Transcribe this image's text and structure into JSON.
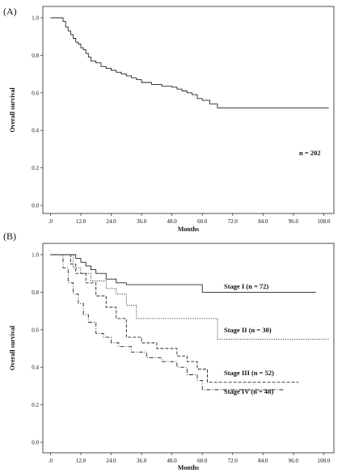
{
  "chart_data": [
    {
      "type": "line",
      "panel_label": "(A)",
      "xlabel": "Months",
      "ylabel": "Overall survival",
      "xlim": [
        -3,
        112
      ],
      "ylim": [
        0,
        1.0
      ],
      "xticks": [
        ".0",
        "12.0",
        "24.0",
        "36.0",
        "48.0",
        "60.0",
        "72.0",
        "84.0",
        "96.0",
        "108.0"
      ],
      "yticks": [
        "0.0",
        "0.2",
        "0.4",
        "0.6",
        "0.8",
        "1.0"
      ],
      "annotation": "n = 202",
      "series": [
        {
          "style": "solid",
          "x": [
            0,
            4,
            5,
            6,
            7,
            8,
            9,
            10,
            11,
            12,
            13,
            14,
            15,
            16,
            18,
            20,
            22,
            24,
            26,
            28,
            30,
            32,
            34,
            36,
            40,
            44,
            48,
            50,
            52,
            54,
            56,
            58,
            60,
            63,
            66,
            110
          ],
          "y": [
            1.0,
            1.0,
            0.98,
            0.95,
            0.93,
            0.91,
            0.89,
            0.87,
            0.86,
            0.84,
            0.83,
            0.81,
            0.79,
            0.77,
            0.76,
            0.74,
            0.73,
            0.72,
            0.71,
            0.7,
            0.69,
            0.68,
            0.67,
            0.655,
            0.645,
            0.635,
            0.63,
            0.62,
            0.61,
            0.6,
            0.59,
            0.57,
            0.56,
            0.54,
            0.52,
            0.52
          ]
        }
      ]
    },
    {
      "type": "line",
      "panel_label": "(B)",
      "xlabel": "Months",
      "ylabel": "Overall survival",
      "xlim": [
        -3,
        112
      ],
      "ylim": [
        0,
        1.0
      ],
      "xticks": [
        ".0",
        "12.0",
        "24.0",
        "36.0",
        "48.0",
        "60.0",
        "72.0",
        "84.0",
        "96.0",
        "108.0"
      ],
      "yticks": [
        "0.0",
        "0.2",
        "0.4",
        "0.6",
        "0.8",
        "1.0"
      ],
      "series": [
        {
          "name": "Stage I (n = 72)",
          "style": "solid",
          "x": [
            0,
            8,
            10,
            12,
            14,
            16,
            18,
            22,
            26,
            30,
            60,
            105
          ],
          "y": [
            1.0,
            1.0,
            0.98,
            0.96,
            0.94,
            0.92,
            0.9,
            0.87,
            0.85,
            0.84,
            0.8,
            0.8
          ]
        },
        {
          "name": "Stage II (n = 30)",
          "style": "dotted",
          "x": [
            0,
            6,
            9,
            12,
            16,
            22,
            26,
            30,
            34,
            48,
            66,
            110
          ],
          "y": [
            1.0,
            1.0,
            0.93,
            0.9,
            0.86,
            0.82,
            0.79,
            0.73,
            0.66,
            0.66,
            0.55,
            0.55
          ]
        },
        {
          "name": "Stage III (n = 52)",
          "style": "dashed",
          "x": [
            0,
            5,
            8,
            10,
            14,
            18,
            22,
            26,
            30,
            36,
            42,
            50,
            54,
            58,
            62,
            98
          ],
          "y": [
            1.0,
            1.0,
            0.95,
            0.9,
            0.85,
            0.78,
            0.72,
            0.66,
            0.56,
            0.53,
            0.5,
            0.46,
            0.43,
            0.39,
            0.32,
            0.32
          ]
        },
        {
          "name": "Stage IV (n = 48)",
          "style": "dashdot",
          "x": [
            0,
            3,
            5,
            7,
            9,
            11,
            13,
            15,
            18,
            21,
            24,
            27,
            32,
            38,
            44,
            50,
            54,
            58,
            60,
            92
          ],
          "y": [
            1.0,
            1.0,
            0.93,
            0.85,
            0.79,
            0.74,
            0.68,
            0.64,
            0.58,
            0.56,
            0.53,
            0.51,
            0.48,
            0.45,
            0.43,
            0.4,
            0.36,
            0.33,
            0.28,
            0.28
          ]
        }
      ]
    }
  ]
}
